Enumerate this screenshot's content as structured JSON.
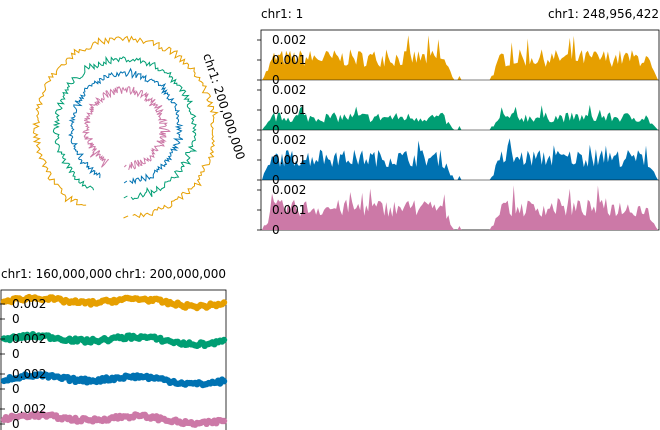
{
  "colors": {
    "series1": "#E69F00",
    "series2": "#009E73",
    "series3": "#0072B2",
    "series4": "#CC79A7",
    "axis": "#000000",
    "background": "#FFFFFF"
  },
  "chart_data": [
    {
      "type": "line",
      "layout": "circular",
      "region_label": "chr1: 200,000,000",
      "xlabel": "",
      "ylabel": "",
      "series_count": 4,
      "gap": [
        121000000,
        143000000
      ],
      "x_range": [
        1,
        248956422
      ],
      "grid": false,
      "legend": "none"
    },
    {
      "type": "area",
      "region_start_label": "chr1: 1",
      "region_end_label": "chr1: 248,956,422",
      "x_range": [
        1,
        248956422
      ],
      "ylim": [
        0,
        0.0025
      ],
      "y_ticks": [
        "0.002",
        "0.001",
        "0"
      ],
      "gap": [
        121000000,
        143000000
      ],
      "tracks": [
        {
          "color": "#E69F00",
          "mean": 0.00118
        },
        {
          "color": "#009E73",
          "mean": 0.00068
        },
        {
          "color": "#0072B2",
          "mean": 0.00118
        },
        {
          "color": "#CC79A7",
          "mean": 0.00118
        }
      ],
      "grid": false,
      "legend": "none"
    },
    {
      "type": "scatter",
      "region_start_label": "chr1: 160,000,000",
      "region_end_label": "chr1: 200,000,000",
      "x_range": [
        160000000,
        200000000
      ],
      "ylim": [
        0,
        0.0032
      ],
      "y_ticks": [
        "0.002",
        "0"
      ],
      "tracks": [
        {
          "color": "#E69F00",
          "mean": 0.00125
        },
        {
          "color": "#009E73",
          "mean": 0.00105
        },
        {
          "color": "#0072B2",
          "mean": 0.00075
        },
        {
          "color": "#CC79A7",
          "mean": 0.00045
        }
      ],
      "grid": false,
      "legend": "none"
    }
  ]
}
